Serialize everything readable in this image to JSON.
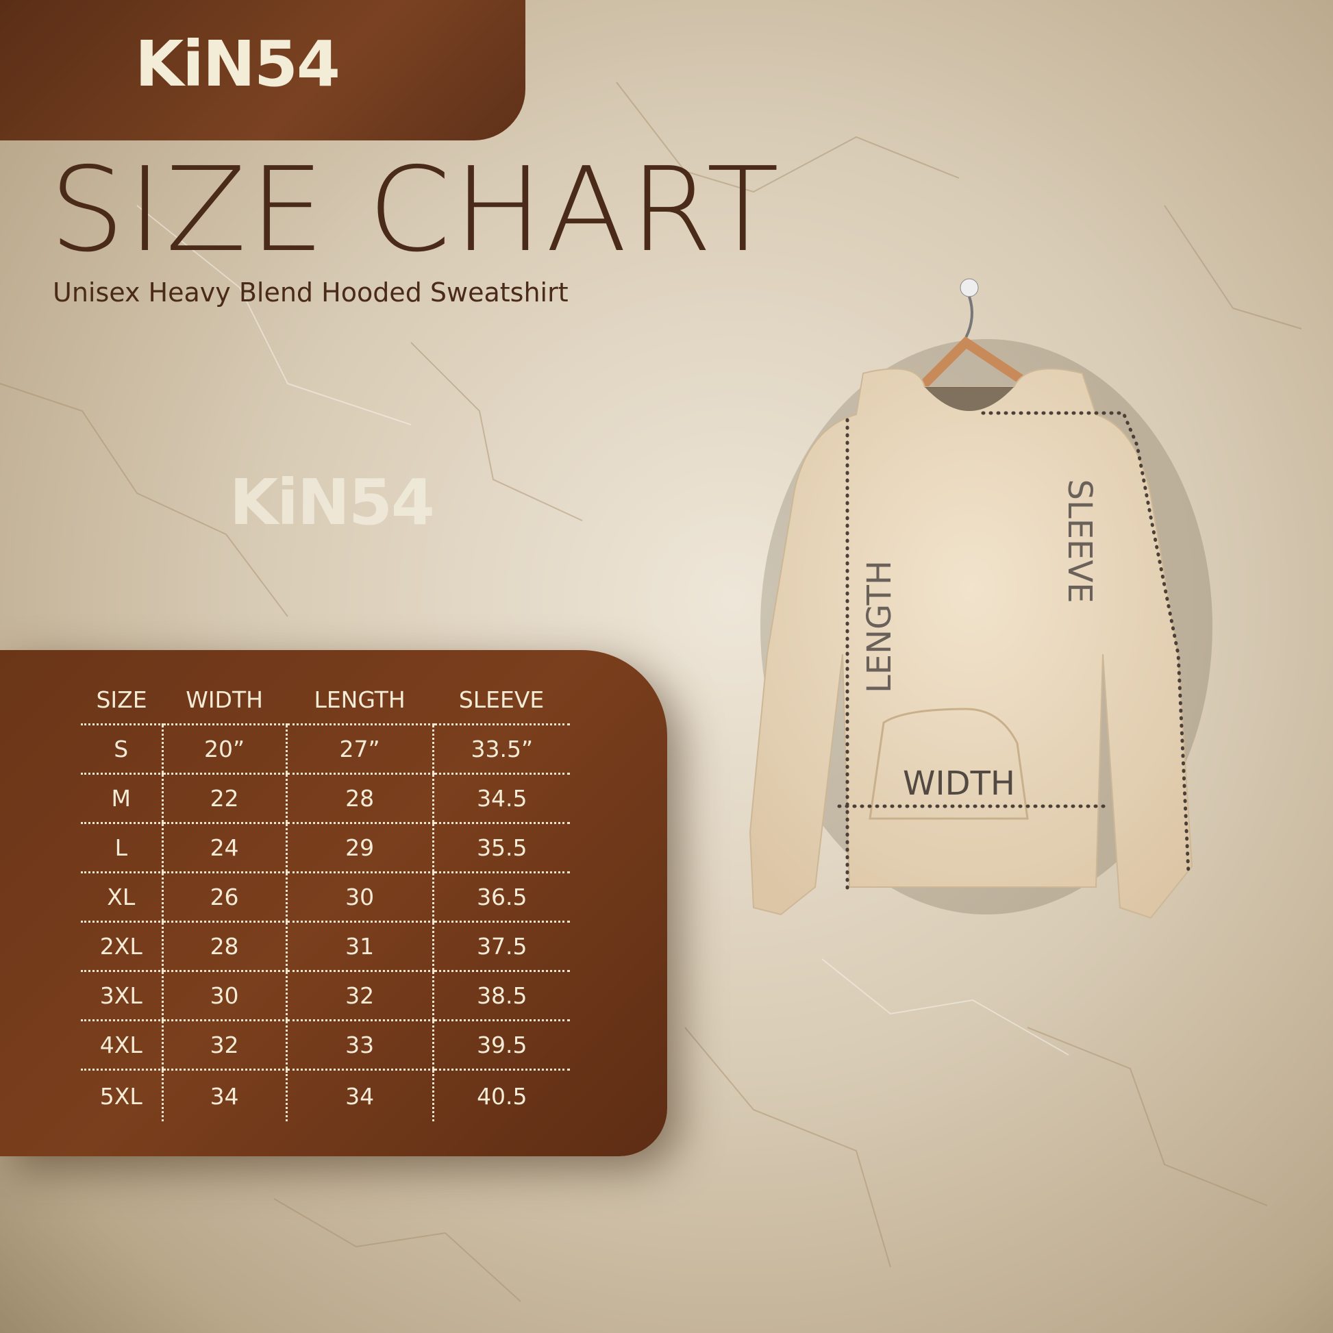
{
  "brand": {
    "logo_text": "KiN54",
    "watermark_text": "KiN54"
  },
  "header": {
    "title": "SIZE CHART",
    "subtitle": "Unisex Heavy Blend Hooded Sweatshirt"
  },
  "colors": {
    "panel": "#6b3518",
    "title": "#4a2a18",
    "text_light": "#f5ecd8"
  },
  "table": {
    "headers": [
      "SIZE",
      "WIDTH",
      "LENGTH",
      "SLEEVE"
    ],
    "rows": [
      [
        "S",
        "20”",
        "27”",
        "33.5”"
      ],
      [
        "M",
        "22",
        "28",
        "34.5"
      ],
      [
        "L",
        "24",
        "29",
        "35.5"
      ],
      [
        "XL",
        "26",
        "30",
        "36.5"
      ],
      [
        "2XL",
        "28",
        "31",
        "37.5"
      ],
      [
        "3XL",
        "30",
        "32",
        "38.5"
      ],
      [
        "4XL",
        "32",
        "33",
        "39.5"
      ],
      [
        "5XL",
        "34",
        "34",
        "40.5"
      ]
    ]
  },
  "diagram": {
    "length_label": "LENGTH",
    "sleeve_label": "SLEEVE",
    "width_label": "WIDTH"
  }
}
